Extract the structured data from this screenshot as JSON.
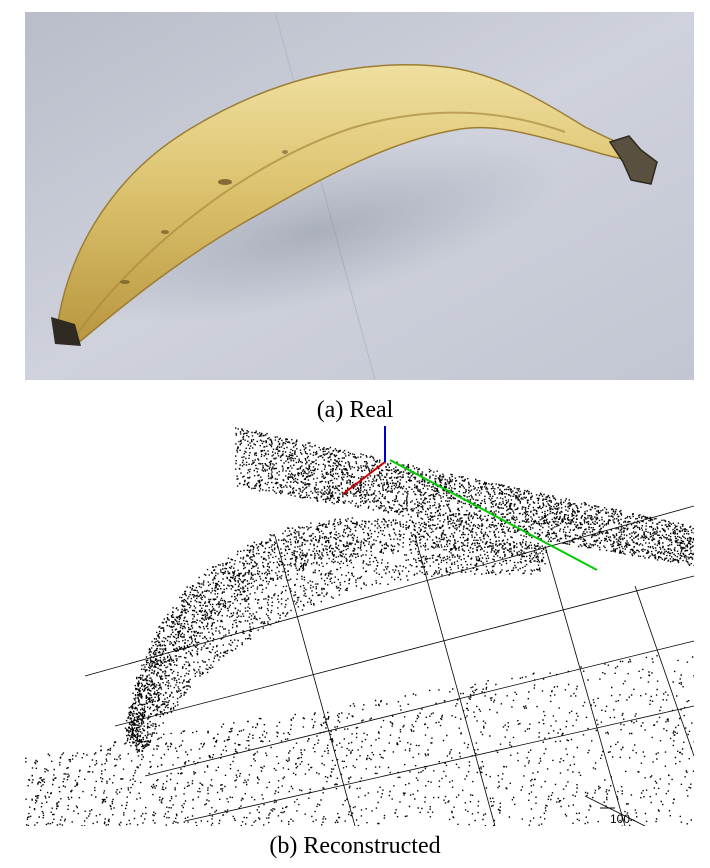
{
  "figure": {
    "caption_a": "(a) Real",
    "caption_b": "(b) Reconstructed",
    "tick_label": "100"
  },
  "colors": {
    "background_photo": "#c9cdd8",
    "banana_peel": "#d9c06a",
    "axis_x": "#cc0000",
    "axis_y": "#00cc00",
    "axis_z": "#0000cc"
  }
}
